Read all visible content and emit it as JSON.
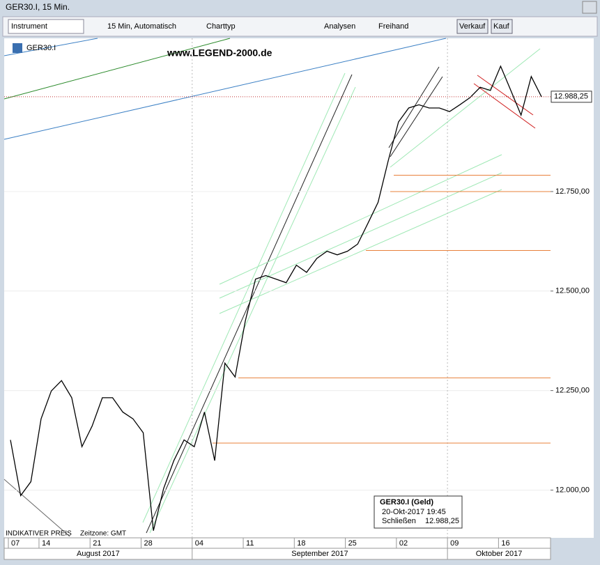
{
  "window": {
    "title": "GER30.I, 15 Min."
  },
  "toolbar": {
    "instrument": "Instrument",
    "interval": "15 Min,  Automatisch",
    "charttype": "Charttyp",
    "analysen": "Analysen",
    "freihand": "Freihand",
    "verkauf": "Verkauf",
    "kauf": "Kauf"
  },
  "chart_data": {
    "type": "line",
    "instrument": "GER30.I",
    "watermark": "www.LEGEND-2000.de",
    "categories": [
      "07",
      null,
      null,
      "14",
      null,
      null,
      null,
      null,
      "21",
      null,
      null,
      null,
      null,
      "28",
      null,
      null,
      null,
      null,
      "04",
      null,
      null,
      null,
      null,
      "11",
      null,
      null,
      null,
      null,
      "18",
      null,
      null,
      null,
      null,
      "25",
      null,
      null,
      null,
      null,
      "02",
      null,
      null,
      null,
      null,
      "09",
      null,
      null,
      null,
      null,
      "16",
      null,
      null,
      null,
      null
    ],
    "series": [
      {
        "name": "GER30.I",
        "color": "#000000",
        "values": [
          12126,
          11986,
          12021,
          12179,
          12249,
          12275,
          12232,
          12109,
          12161,
          12232,
          12232,
          12196,
          12179,
          12144,
          11898,
          12004,
          12074,
          12126,
          12109,
          12196,
          12074,
          12319,
          12284,
          12425,
          12530,
          12539,
          12530,
          12521,
          12565,
          12547,
          12582,
          12600,
          12591,
          12600,
          12618,
          12670,
          12723,
          12828,
          12925,
          12960,
          12968,
          12960,
          12960,
          12951,
          12968,
          12986,
          13012,
          13004,
          13065,
          13004,
          12942,
          13039,
          12988.25
        ]
      }
    ],
    "months": [
      "August 2017",
      "September 2017",
      "Oktober 2017"
    ],
    "ylim": [
      11880,
      13135
    ],
    "yticks": [
      {
        "value": 12000,
        "label": "12.000,00"
      },
      {
        "value": 12250,
        "label": "12.250,00"
      },
      {
        "value": 12500,
        "label": "12.500,00"
      },
      {
        "value": 12750,
        "label": "12.750,00"
      }
    ],
    "price_label": {
      "value": 12988.25,
      "label": "12.988,25"
    },
    "levels": [
      12791,
      12750,
      12602,
      12282,
      12118
    ],
    "level_color": "#e8803a",
    "grid": true,
    "tooltip": {
      "title": "GER30.I (Geld)",
      "date": "20-Okt-2017 19:45",
      "field": "Schließen",
      "value": "12.988,25"
    },
    "footer": {
      "note": "INDIKATIVER PREIS",
      "timezone": "Zeitzone: GMT"
    }
  }
}
